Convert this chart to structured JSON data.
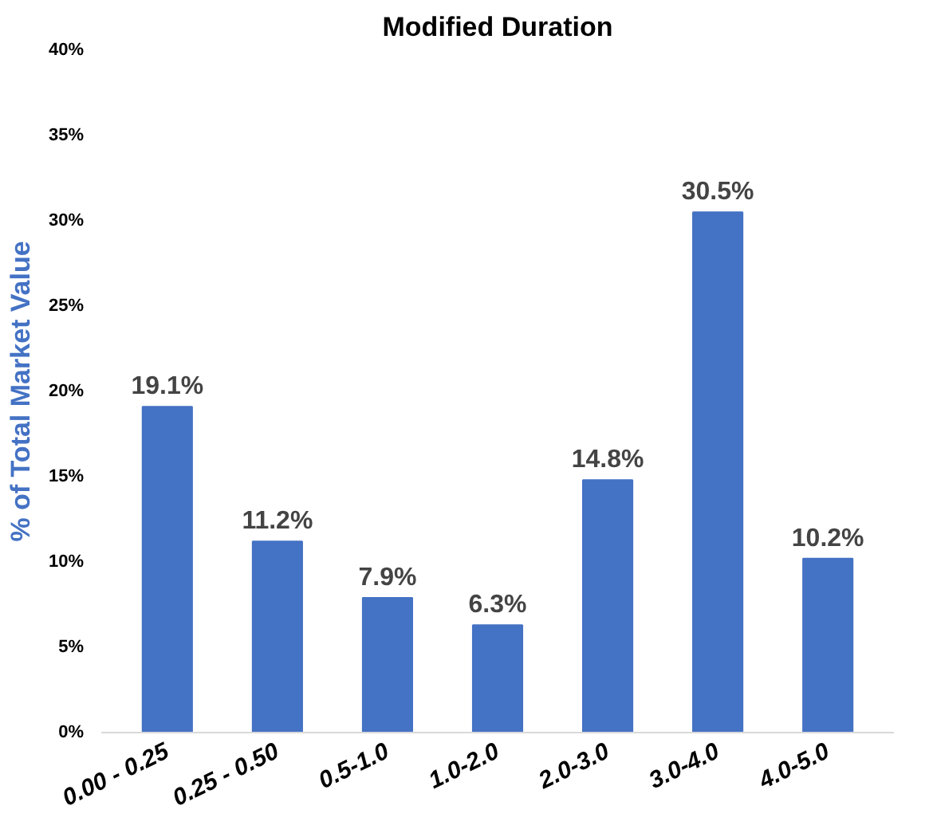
{
  "chart_data": {
    "type": "bar",
    "title": "Modified Duration",
    "ylabel": "% of Total Market Value",
    "categories": [
      "0.00 - 0.25",
      "0.25 - 0.50",
      "0.5-1.0",
      "1.0-2.0",
      "2.0-3.0",
      "3.0-4.0",
      "4.0-5.0"
    ],
    "values": [
      19.1,
      11.2,
      7.9,
      6.3,
      14.8,
      30.5,
      10.2
    ],
    "value_labels": [
      "19.1%",
      "11.2%",
      "7.9%",
      "6.3%",
      "14.8%",
      "30.5%",
      "10.2%"
    ],
    "color": "#4472c4",
    "ylim": [
      0,
      40
    ],
    "yticks": [
      {
        "value": 0,
        "label": "0%"
      },
      {
        "value": 5,
        "label": "5%"
      },
      {
        "value": 10,
        "label": "10%"
      },
      {
        "value": 15,
        "label": "15%"
      },
      {
        "value": 20,
        "label": "20%"
      },
      {
        "value": 25,
        "label": "25%"
      },
      {
        "value": 30,
        "label": "30%"
      },
      {
        "value": 35,
        "label": "35%"
      },
      {
        "value": 40,
        "label": "40%"
      }
    ],
    "grid": false
  }
}
